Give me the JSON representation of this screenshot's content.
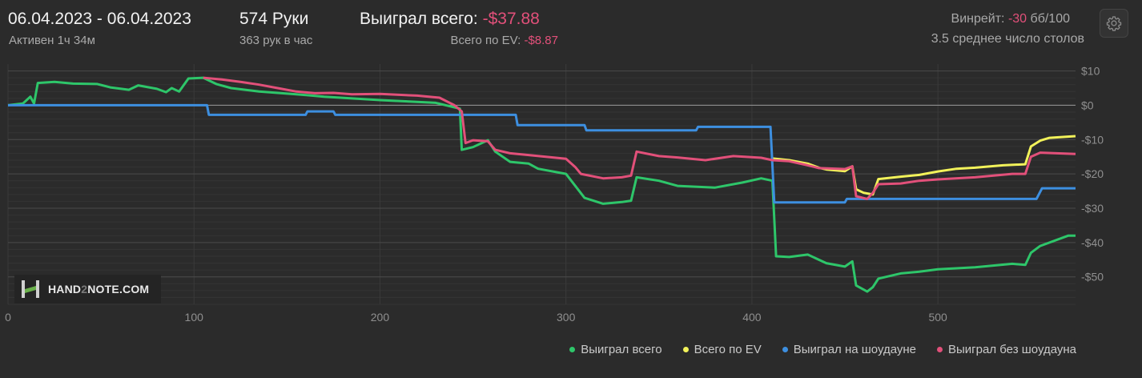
{
  "header": {
    "date_range": "06.04.2023 - 06.04.2023",
    "active": "Активен 1ч 34м",
    "hands": "574 Руки",
    "hands_per_hour": "363 рук в час",
    "won_label": "Выиграл всего: ",
    "won_value": "-$37.88",
    "ev_label": "Всего по EV: ",
    "ev_value": "-$8.87",
    "winrate_label": "Винрейт: ",
    "winrate_value": "-30",
    "winrate_unit": " бб/100",
    "avg_tables": "3.5 среднее число столов"
  },
  "logo": {
    "part1": "HAND",
    "part2": "2",
    "part3": "NOTE.COM"
  },
  "legend": [
    {
      "name": "Выиграл всего",
      "color": "#2ec66a"
    },
    {
      "name": "Всего по EV",
      "color": "#f2f25a"
    },
    {
      "name": "Выиграл на шоудауне",
      "color": "#3d8fe0"
    },
    {
      "name": "Выиграл без шоудауна",
      "color": "#e2507a"
    }
  ],
  "chart_data": {
    "type": "line",
    "xlim": [
      0,
      574
    ],
    "ylim": [
      -58,
      12
    ],
    "x_ticks": [
      0,
      100,
      200,
      300,
      400,
      500
    ],
    "y_ticks": [
      10,
      0,
      -10,
      -20,
      -30,
      -40,
      -50
    ],
    "y_tick_labels": [
      "$10",
      "$0",
      "-$10",
      "-$20",
      "-$30",
      "-$40",
      "-$50"
    ],
    "series": [
      {
        "name": "Выиграл всего",
        "color": "#2ec66a",
        "points": [
          [
            0,
            0
          ],
          [
            8,
            0.5
          ],
          [
            12,
            2.5
          ],
          [
            14,
            0.5
          ],
          [
            16,
            6.5
          ],
          [
            25,
            6.8
          ],
          [
            35,
            6.3
          ],
          [
            48,
            6.2
          ],
          [
            55,
            5.2
          ],
          [
            65,
            4.5
          ],
          [
            70,
            5.8
          ],
          [
            80,
            4.8
          ],
          [
            85,
            3.8
          ],
          [
            88,
            5
          ],
          [
            92,
            4
          ],
          [
            97,
            7.8
          ],
          [
            105,
            8
          ],
          [
            112,
            6.2
          ],
          [
            120,
            5
          ],
          [
            135,
            4
          ],
          [
            155,
            3.2
          ],
          [
            170,
            2.5
          ],
          [
            200,
            1.5
          ],
          [
            230,
            0.7
          ],
          [
            243,
            -1
          ],
          [
            244,
            -13
          ],
          [
            250,
            -12.2
          ],
          [
            258,
            -10.2
          ],
          [
            262,
            -13.5
          ],
          [
            270,
            -16.5
          ],
          [
            280,
            -17
          ],
          [
            285,
            -18.5
          ],
          [
            300,
            -20
          ],
          [
            310,
            -27
          ],
          [
            320,
            -28.7
          ],
          [
            330,
            -28.2
          ],
          [
            335,
            -27.8
          ],
          [
            338,
            -21
          ],
          [
            350,
            -22
          ],
          [
            360,
            -23.5
          ],
          [
            380,
            -24
          ],
          [
            395,
            -22.5
          ],
          [
            405,
            -21.3
          ],
          [
            411,
            -22
          ],
          [
            413,
            -44
          ],
          [
            420,
            -44.2
          ],
          [
            430,
            -43.5
          ],
          [
            440,
            -46
          ],
          [
            450,
            -47
          ],
          [
            454,
            -45.5
          ],
          [
            456,
            -52.5
          ],
          [
            462,
            -54.3
          ],
          [
            465,
            -53
          ],
          [
            468,
            -50.5
          ],
          [
            480,
            -49
          ],
          [
            490,
            -48.5
          ],
          [
            500,
            -47.8
          ],
          [
            520,
            -47.2
          ],
          [
            540,
            -46.2
          ],
          [
            547,
            -46.5
          ],
          [
            550,
            -43
          ],
          [
            555,
            -41
          ],
          [
            570,
            -38
          ],
          [
            574,
            -38
          ]
        ]
      },
      {
        "name": "Всего по EV",
        "color": "#f2f25a",
        "points": [
          [
            411,
            -15.5
          ],
          [
            420,
            -16
          ],
          [
            430,
            -17
          ],
          [
            436,
            -18.2
          ],
          [
            440,
            -18.7
          ],
          [
            450,
            -19.2
          ],
          [
            454,
            -17.8
          ],
          [
            456,
            -24.5
          ],
          [
            460,
            -25.5
          ],
          [
            465,
            -26
          ],
          [
            468,
            -21.5
          ],
          [
            480,
            -20.8
          ],
          [
            490,
            -20.3
          ],
          [
            500,
            -19.3
          ],
          [
            510,
            -18.5
          ],
          [
            520,
            -18.2
          ],
          [
            535,
            -17.5
          ],
          [
            547,
            -17.2
          ],
          [
            550,
            -12
          ],
          [
            555,
            -10.3
          ],
          [
            560,
            -9.5
          ],
          [
            574,
            -9
          ]
        ]
      },
      {
        "name": "Выиграл на шоудауне",
        "color": "#3d8fe0",
        "points": [
          [
            0,
            0
          ],
          [
            107,
            0
          ],
          [
            108,
            -2.8
          ],
          [
            160,
            -2.8
          ],
          [
            161,
            -1.8
          ],
          [
            175,
            -1.8
          ],
          [
            176,
            -2.8
          ],
          [
            273,
            -2.8
          ],
          [
            274,
            -5.8
          ],
          [
            310,
            -5.8
          ],
          [
            311,
            -7.3
          ],
          [
            370,
            -7.3
          ],
          [
            371,
            -6.3
          ],
          [
            410,
            -6.3
          ],
          [
            412,
            -28.3
          ],
          [
            450,
            -28.3
          ],
          [
            451,
            -27.3
          ],
          [
            553,
            -27.3
          ],
          [
            556,
            -24.2
          ],
          [
            574,
            -24.2
          ]
        ]
      },
      {
        "name": "Выиграл без шоудауна",
        "color": "#e2507a",
        "points": [
          [
            105,
            8
          ],
          [
            115,
            7.5
          ],
          [
            125,
            6.8
          ],
          [
            135,
            6
          ],
          [
            145,
            5
          ],
          [
            155,
            4
          ],
          [
            165,
            3.5
          ],
          [
            175,
            3.6
          ],
          [
            185,
            3.2
          ],
          [
            200,
            3.3
          ],
          [
            220,
            2.8
          ],
          [
            232,
            2.2
          ],
          [
            240,
            0
          ],
          [
            244,
            -1.8
          ],
          [
            246,
            -11
          ],
          [
            250,
            -10.2
          ],
          [
            258,
            -10.5
          ],
          [
            262,
            -13
          ],
          [
            270,
            -14
          ],
          [
            280,
            -14.5
          ],
          [
            300,
            -15.6
          ],
          [
            305,
            -18
          ],
          [
            308,
            -20
          ],
          [
            320,
            -21.3
          ],
          [
            330,
            -21
          ],
          [
            335,
            -20.5
          ],
          [
            338,
            -13.5
          ],
          [
            350,
            -14.8
          ],
          [
            360,
            -15.2
          ],
          [
            375,
            -16
          ],
          [
            390,
            -14.8
          ],
          [
            405,
            -15.3
          ],
          [
            411,
            -16
          ],
          [
            420,
            -16.3
          ],
          [
            430,
            -17.5
          ],
          [
            436,
            -18.3
          ],
          [
            450,
            -18.6
          ],
          [
            454,
            -17.8
          ],
          [
            456,
            -26.5
          ],
          [
            462,
            -27.3
          ],
          [
            465,
            -25.5
          ],
          [
            468,
            -23
          ],
          [
            480,
            -22.8
          ],
          [
            490,
            -22
          ],
          [
            500,
            -21.6
          ],
          [
            520,
            -21
          ],
          [
            540,
            -20
          ],
          [
            547,
            -20
          ],
          [
            550,
            -15
          ],
          [
            555,
            -13.8
          ],
          [
            574,
            -14.2
          ]
        ]
      }
    ]
  }
}
